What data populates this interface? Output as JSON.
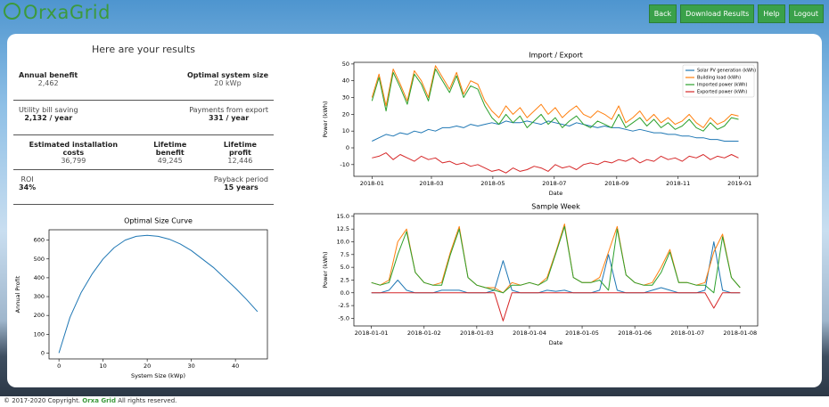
{
  "header": {
    "logo": "OrxaGrid",
    "buttons": [
      "Back",
      "Download Results",
      "Help",
      "Logout"
    ]
  },
  "results": {
    "title": "Here are your results",
    "rows": [
      [
        {
          "label": "Annual benefit",
          "value": "2,462"
        },
        {
          "label": "Optimal system size",
          "value": "20 kWp"
        }
      ],
      [
        {
          "label": "Utility bill saving",
          "value": "2,132 / year"
        },
        {
          "label": "Payments from export",
          "value": "331 / year"
        }
      ],
      [
        {
          "label": "Estimated installation costs",
          "value": "36,799"
        },
        {
          "label": "Lifetime benefit",
          "value": "49,245"
        },
        {
          "label": "Lifetime profit",
          "value": "12,446"
        }
      ],
      [
        {
          "label": "ROI",
          "value": "34%"
        },
        {
          "label": "Payback period",
          "value": "15 years"
        }
      ]
    ]
  },
  "chart_data": [
    {
      "type": "line",
      "title": "Optimal Size Curve",
      "xlabel": "System Size (kWp)",
      "ylabel": "Annual Profit",
      "x": [
        0,
        2.5,
        5,
        7.5,
        10,
        12.5,
        15,
        17.5,
        20,
        22.5,
        25,
        27.5,
        30,
        32.5,
        35,
        37.5,
        40,
        42.5,
        45
      ],
      "series": [
        {
          "color": "#1f77b4",
          "values": [
            0,
            190,
            320,
            420,
            500,
            560,
            600,
            620,
            625,
            620,
            605,
            580,
            545,
            500,
            455,
            400,
            345,
            285,
            220
          ]
        }
      ],
      "xlim": [
        -2.25,
        47.25
      ],
      "ylim": [
        -31,
        655
      ],
      "xticks": [
        0,
        10,
        20,
        30,
        40
      ],
      "yticks": [
        0,
        100,
        200,
        300,
        400,
        500,
        600
      ]
    },
    {
      "type": "line",
      "title": "Import / Export",
      "xlabel": "Date",
      "ylabel": "Power (kWh)",
      "legend": "upper right",
      "x": [
        0,
        7,
        14,
        21,
        28,
        35,
        42,
        49,
        56,
        63,
        70,
        77,
        84,
        91,
        98,
        105,
        112,
        119,
        126,
        133,
        140,
        147,
        154,
        161,
        168,
        175,
        182,
        189,
        196,
        203,
        210,
        217,
        224,
        231,
        238,
        245,
        252,
        259,
        266,
        273,
        280,
        287,
        294,
        301,
        308,
        315,
        322,
        329,
        336,
        343,
        350,
        357,
        364
      ],
      "series": [
        {
          "name": "Solar PV generation (kWh)",
          "color": "#1f77b4",
          "values": [
            4,
            6,
            8,
            7,
            9,
            8,
            10,
            9,
            11,
            10,
            12,
            12,
            13,
            12,
            14,
            13,
            14,
            15,
            14,
            16,
            15,
            15,
            16,
            15,
            14,
            16,
            15,
            14,
            13,
            15,
            14,
            13,
            12,
            13,
            12,
            12,
            11,
            10,
            11,
            10,
            9,
            9,
            8,
            8,
            7,
            7,
            6,
            6,
            5,
            5,
            4,
            4,
            4
          ]
        },
        {
          "name": "Building load (kWh)",
          "color": "#ff7f0e",
          "values": [
            30,
            44,
            25,
            47,
            38,
            28,
            46,
            40,
            30,
            49,
            42,
            35,
            45,
            32,
            40,
            38,
            28,
            22,
            18,
            25,
            20,
            24,
            18,
            22,
            26,
            20,
            24,
            18,
            22,
            25,
            20,
            18,
            22,
            20,
            17,
            25,
            15,
            18,
            22,
            16,
            20,
            15,
            18,
            14,
            16,
            20,
            15,
            12,
            18,
            14,
            16,
            20,
            19
          ]
        },
        {
          "name": "Imported power (kWh)",
          "color": "#2ca02c",
          "values": [
            28,
            42,
            22,
            45,
            36,
            26,
            44,
            38,
            28,
            47,
            40,
            33,
            43,
            30,
            37,
            35,
            25,
            18,
            14,
            20,
            15,
            19,
            12,
            16,
            20,
            14,
            18,
            12,
            16,
            19,
            14,
            12,
            16,
            14,
            12,
            20,
            12,
            15,
            18,
            13,
            17,
            12,
            15,
            11,
            13,
            17,
            12,
            10,
            15,
            11,
            13,
            18,
            17
          ]
        },
        {
          "name": "Exported power (kWh)",
          "color": "#d62728",
          "values": [
            -6,
            -5,
            -3,
            -7,
            -4,
            -6,
            -8,
            -5,
            -7,
            -6,
            -9,
            -8,
            -10,
            -9,
            -11,
            -10,
            -12,
            -14,
            -13,
            -15,
            -12,
            -14,
            -13,
            -11,
            -12,
            -14,
            -10,
            -12,
            -11,
            -13,
            -10,
            -9,
            -10,
            -8,
            -9,
            -7,
            -8,
            -6,
            -9,
            -7,
            -8,
            -5,
            -7,
            -6,
            -8,
            -5,
            -6,
            -4,
            -7,
            -5,
            -6,
            -4,
            -6
          ]
        }
      ],
      "xlim": [
        -18,
        383
      ],
      "ylim": [
        -17,
        51
      ],
      "xticks": [
        {
          "value": 0,
          "label": "2018-01"
        },
        {
          "value": 59,
          "label": "2018-03"
        },
        {
          "value": 120,
          "label": "2018-05"
        },
        {
          "value": 181,
          "label": "2018-07"
        },
        {
          "value": 243,
          "label": "2018-09"
        },
        {
          "value": 304,
          "label": "2018-11"
        },
        {
          "value": 365,
          "label": "2019-01"
        }
      ],
      "yticks": [
        -10,
        0,
        10,
        20,
        30,
        40,
        50
      ]
    },
    {
      "type": "line",
      "title": "Sample Week",
      "xlabel": "Date",
      "ylabel": "Power (kWh)",
      "x": [
        0,
        4,
        8,
        12,
        16,
        20,
        24,
        28,
        32,
        36,
        40,
        44,
        48,
        52,
        56,
        60,
        64,
        68,
        72,
        76,
        80,
        84,
        88,
        92,
        96,
        100,
        104,
        108,
        112,
        116,
        120,
        124,
        128,
        132,
        136,
        140,
        144,
        148,
        152,
        156,
        160,
        164,
        168
      ],
      "series": [
        {
          "color": "#1f77b4",
          "values": [
            0,
            0,
            0.5,
            2.5,
            0.5,
            0,
            0,
            0,
            0.5,
            0.5,
            0.5,
            0,
            0,
            0,
            0.5,
            6.3,
            0.5,
            0,
            0,
            0,
            0.5,
            0.3,
            0.5,
            0,
            0,
            0,
            0.5,
            7.5,
            0.5,
            0,
            0,
            0,
            0.5,
            1,
            0.5,
            0,
            0,
            0,
            0.5,
            10,
            0.5,
            0,
            0
          ]
        },
        {
          "color": "#ff7f0e",
          "values": [
            2,
            1.5,
            2.5,
            10,
            12.5,
            4,
            2,
            1.5,
            2,
            8,
            13,
            3,
            1.5,
            1,
            1,
            0,
            2,
            1.5,
            2,
            1.5,
            3,
            8,
            13.5,
            3,
            2,
            2,
            3,
            8,
            13,
            3.5,
            2,
            1.5,
            2,
            5,
            8.5,
            2,
            2,
            1.5,
            2,
            8,
            11.5,
            3,
            1
          ]
        },
        {
          "color": "#2ca02c",
          "values": [
            2,
            1.5,
            2,
            7.5,
            12,
            4,
            2,
            1.5,
            1.5,
            7.5,
            12.5,
            3,
            1.5,
            1,
            0.5,
            0,
            1.5,
            1.5,
            2,
            1.5,
            2.5,
            7.7,
            13,
            3,
            2,
            2,
            2.5,
            0.5,
            12.5,
            3.5,
            2,
            1.5,
            1.5,
            4,
            8,
            2,
            2,
            1.5,
            1.5,
            0,
            11,
            3,
            1
          ]
        },
        {
          "color": "#d62728",
          "values": [
            0,
            0,
            0,
            0,
            0,
            0,
            0,
            0,
            0,
            0,
            0,
            0,
            0,
            0,
            0,
            -5.5,
            0,
            0,
            0,
            0,
            0,
            0,
            0,
            0,
            0,
            0,
            0,
            0,
            0,
            0,
            0,
            0,
            0,
            0,
            0,
            0,
            0,
            0,
            0,
            -3,
            0,
            0,
            0
          ]
        }
      ],
      "xlim": [
        -8,
        176
      ],
      "ylim": [
        -6.5,
        15.5
      ],
      "xticks": [
        {
          "value": 0,
          "label": "2018-01-01"
        },
        {
          "value": 24,
          "label": "2018-01-02"
        },
        {
          "value": 48,
          "label": "2018-01-03"
        },
        {
          "value": 72,
          "label": "2018-01-04"
        },
        {
          "value": 96,
          "label": "2018-01-05"
        },
        {
          "value": 120,
          "label": "2018-01-06"
        },
        {
          "value": 144,
          "label": "2018-01-07"
        },
        {
          "value": 168,
          "label": "2018-01-08"
        }
      ],
      "yticks": [
        {
          "value": -5,
          "label": "-5.0"
        },
        {
          "value": -2.5,
          "label": "-2.5"
        },
        {
          "value": 0,
          "label": "0.0"
        },
        {
          "value": 2.5,
          "label": "2.5"
        },
        {
          "value": 5,
          "label": "5.0"
        },
        {
          "value": 7.5,
          "label": "7.5"
        },
        {
          "value": 10,
          "label": "10.0"
        },
        {
          "value": 12.5,
          "label": "12.5"
        },
        {
          "value": 15,
          "label": "15.0"
        }
      ]
    }
  ],
  "footer": {
    "copyright": "© 2017-2020 Copyright.",
    "brand": "Orxa Grid",
    "rights": "All rights reserved."
  }
}
